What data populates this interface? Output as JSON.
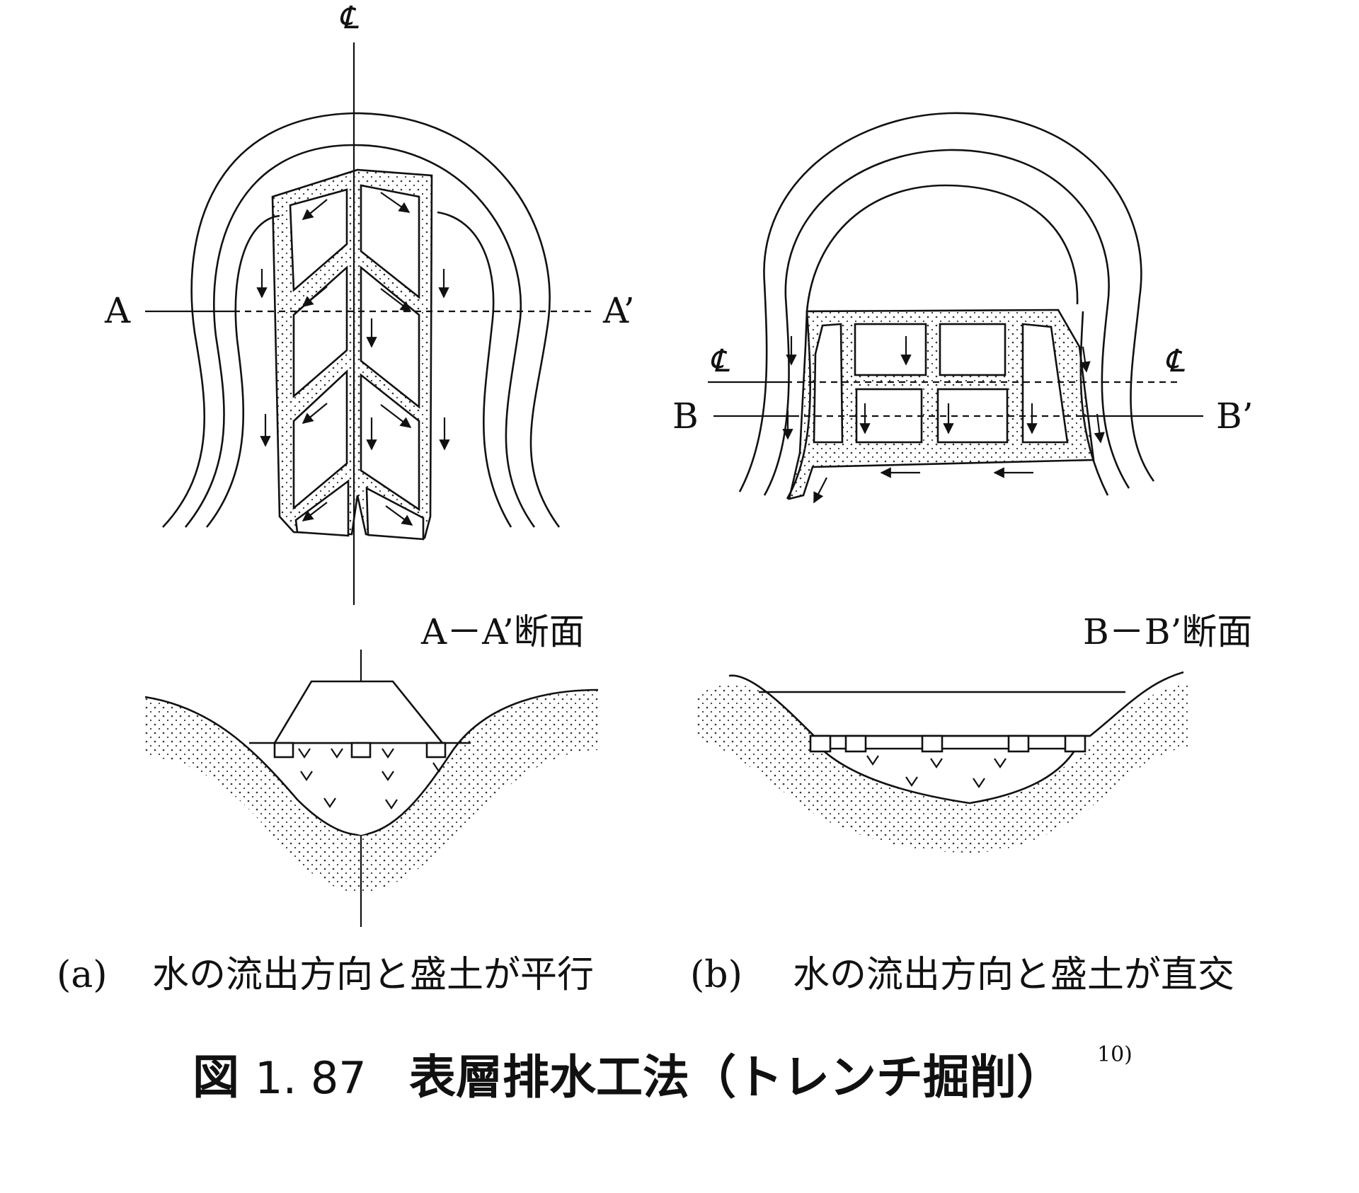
{
  "figure": {
    "title_prefix": "図",
    "number": "1. 87",
    "title_text": "表層排水工法（トレンチ掘削）",
    "reference": "10)"
  },
  "panel_a": {
    "caption_id": "(a)",
    "caption": "水の流出方向と盛土が平行",
    "section_label": "A－A’断面",
    "line_left": "A",
    "line_right": "A’",
    "centerline_symbol": "℄"
  },
  "panel_b": {
    "caption_id": "(b)",
    "caption": "水の流出方向と盛土が直交",
    "section_label": "B－B’断面",
    "line_left": "B",
    "line_right": "B’",
    "centerline_left": "℄",
    "centerline_right": "℄"
  }
}
